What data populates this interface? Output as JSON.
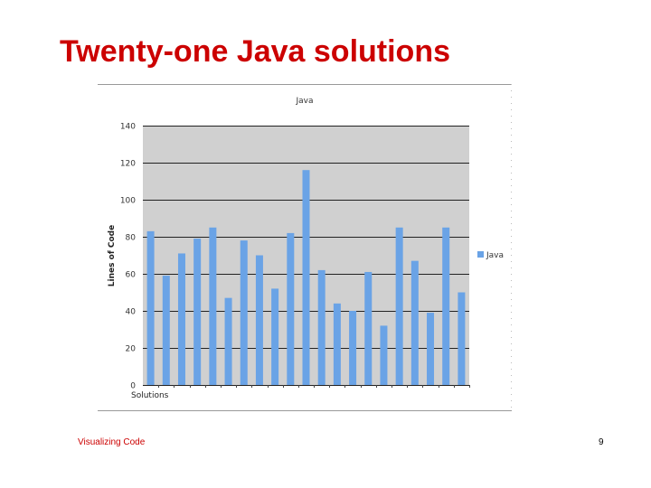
{
  "slide": {
    "title": "Twenty-one Java solutions",
    "footer_left": "Visualizing Code",
    "page_number": "9"
  },
  "chart_data": {
    "type": "bar",
    "title": "Java",
    "xlabel": "Solutions",
    "ylabel": "Lines of Code",
    "ylim": [
      0,
      140
    ],
    "yticks": [
      0,
      20,
      40,
      60,
      80,
      100,
      120,
      140
    ],
    "grid": true,
    "legend": "right",
    "series": [
      {
        "name": "Java",
        "color": "#6aa3e6",
        "values": [
          83,
          59,
          71,
          79,
          85,
          47,
          78,
          70,
          52,
          82,
          116,
          62,
          44,
          40,
          61,
          32,
          85,
          67,
          39,
          85,
          50
        ]
      }
    ]
  }
}
